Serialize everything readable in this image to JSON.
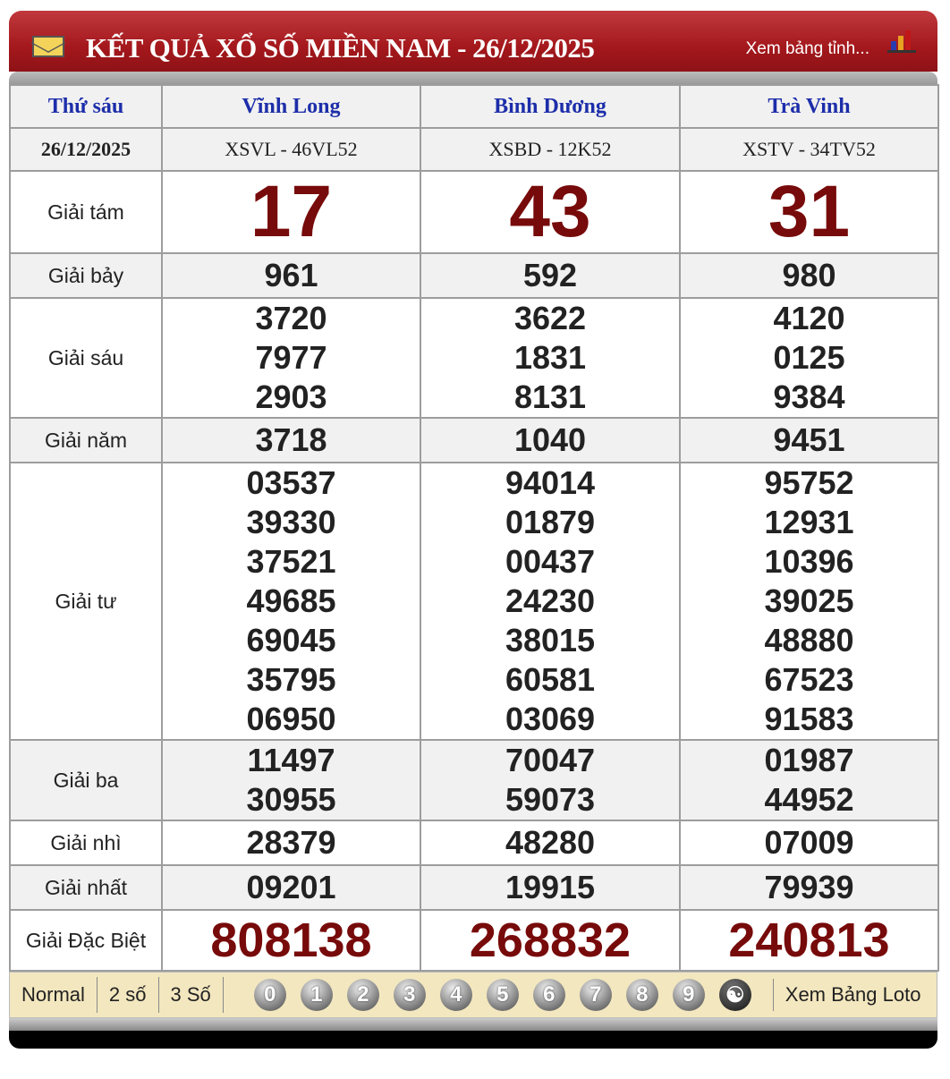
{
  "header": {
    "title": "KẾT QUẢ XỔ SỐ MIỀN NAM - 26/12/2025",
    "link": "Xem bảng tỉnh..."
  },
  "table": {
    "day": "Thứ sáu",
    "date": "26/12/2025",
    "provinces": [
      {
        "name": "Vĩnh Long",
        "code": "XSVL - 46VL52"
      },
      {
        "name": "Bình Dương",
        "code": "XSBD - 12K52"
      },
      {
        "name": "Trà Vinh",
        "code": "XSTV - 34TV52"
      }
    ],
    "prizes": [
      {
        "label": "Giải tám",
        "values": [
          [
            "17"
          ],
          [
            "43"
          ],
          [
            "31"
          ]
        ]
      },
      {
        "label": "Giải bảy",
        "values": [
          [
            "961"
          ],
          [
            "592"
          ],
          [
            "980"
          ]
        ]
      },
      {
        "label": "Giải sáu",
        "values": [
          [
            "3720",
            "7977",
            "2903"
          ],
          [
            "3622",
            "1831",
            "8131"
          ],
          [
            "4120",
            "0125",
            "9384"
          ]
        ]
      },
      {
        "label": "Giải năm",
        "values": [
          [
            "3718"
          ],
          [
            "1040"
          ],
          [
            "9451"
          ]
        ]
      },
      {
        "label": "Giải tư",
        "values": [
          [
            "03537",
            "39330",
            "37521",
            "49685",
            "69045",
            "35795",
            "06950"
          ],
          [
            "94014",
            "01879",
            "00437",
            "24230",
            "38015",
            "60581",
            "03069"
          ],
          [
            "95752",
            "12931",
            "10396",
            "39025",
            "48880",
            "67523",
            "91583"
          ]
        ]
      },
      {
        "label": "Giải ba",
        "values": [
          [
            "11497",
            "30955"
          ],
          [
            "70047",
            "59073"
          ],
          [
            "01987",
            "44952"
          ]
        ]
      },
      {
        "label": "Giải nhì",
        "values": [
          [
            "28379"
          ],
          [
            "48280"
          ],
          [
            "07009"
          ]
        ]
      },
      {
        "label": "Giải nhất",
        "values": [
          [
            "09201"
          ],
          [
            "19915"
          ],
          [
            "79939"
          ]
        ]
      },
      {
        "label": "Giải Đặc Biệt",
        "values": [
          [
            "808138"
          ],
          [
            "268832"
          ],
          [
            "240813"
          ]
        ]
      }
    ]
  },
  "footer": {
    "modes": [
      "Normal",
      "2 số",
      "3 Số"
    ],
    "digits": [
      "0",
      "1",
      "2",
      "3",
      "4",
      "5",
      "6",
      "7",
      "8",
      "9"
    ],
    "link": "Xem Bảng Loto"
  },
  "colors": {
    "header_red": "#a4181c",
    "province_blue": "#1d2eaa",
    "prize_red": "#770a0a",
    "footer_bg": "#f3e7bf"
  }
}
